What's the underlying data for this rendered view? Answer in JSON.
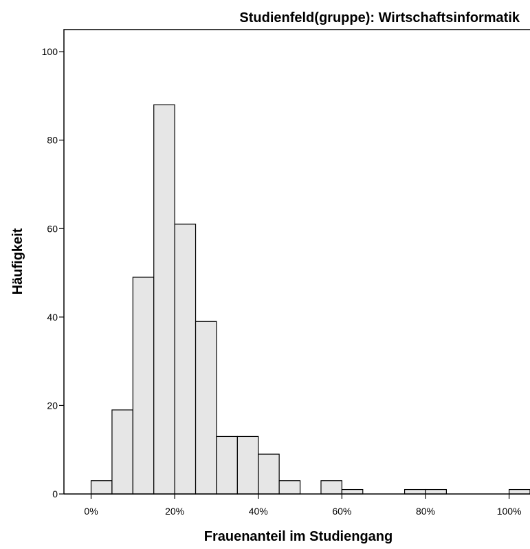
{
  "chart_data": {
    "type": "bar",
    "title": "Studienfeld(gruppe): Wirtschaftsinformatik",
    "xlabel": "Frauenanteil im Studiengang",
    "ylabel": "Häufigkeit",
    "bin_width": 5,
    "x_unit": "%",
    "bins": [
      {
        "x0": 0,
        "x1": 5,
        "value": 3
      },
      {
        "x0": 5,
        "x1": 10,
        "value": 19
      },
      {
        "x0": 10,
        "x1": 15,
        "value": 49
      },
      {
        "x0": 15,
        "x1": 20,
        "value": 88
      },
      {
        "x0": 20,
        "x1": 25,
        "value": 61
      },
      {
        "x0": 25,
        "x1": 30,
        "value": 39
      },
      {
        "x0": 30,
        "x1": 35,
        "value": 13
      },
      {
        "x0": 35,
        "x1": 40,
        "value": 13
      },
      {
        "x0": 40,
        "x1": 45,
        "value": 9
      },
      {
        "x0": 45,
        "x1": 50,
        "value": 3
      },
      {
        "x0": 55,
        "x1": 60,
        "value": 3
      },
      {
        "x0": 60,
        "x1": 65,
        "value": 1
      },
      {
        "x0": 75,
        "x1": 80,
        "value": 1
      },
      {
        "x0": 80,
        "x1": 85,
        "value": 1
      },
      {
        "x0": 100,
        "x1": 105,
        "value": 1
      }
    ],
    "xlim": [
      -6.5,
      105
    ],
    "ylim": [
      0,
      105
    ],
    "x_ticks": [
      {
        "value": 0,
        "label": "0%"
      },
      {
        "value": 20,
        "label": "20%"
      },
      {
        "value": 40,
        "label": "40%"
      },
      {
        "value": 60,
        "label": "60%"
      },
      {
        "value": 80,
        "label": "80%"
      },
      {
        "value": 100,
        "label": "100%"
      }
    ],
    "y_ticks": [
      0,
      20,
      40,
      60,
      80,
      100
    ],
    "grid": false,
    "bar_fill": "#e6e6e6",
    "bar_stroke": "#000000"
  }
}
